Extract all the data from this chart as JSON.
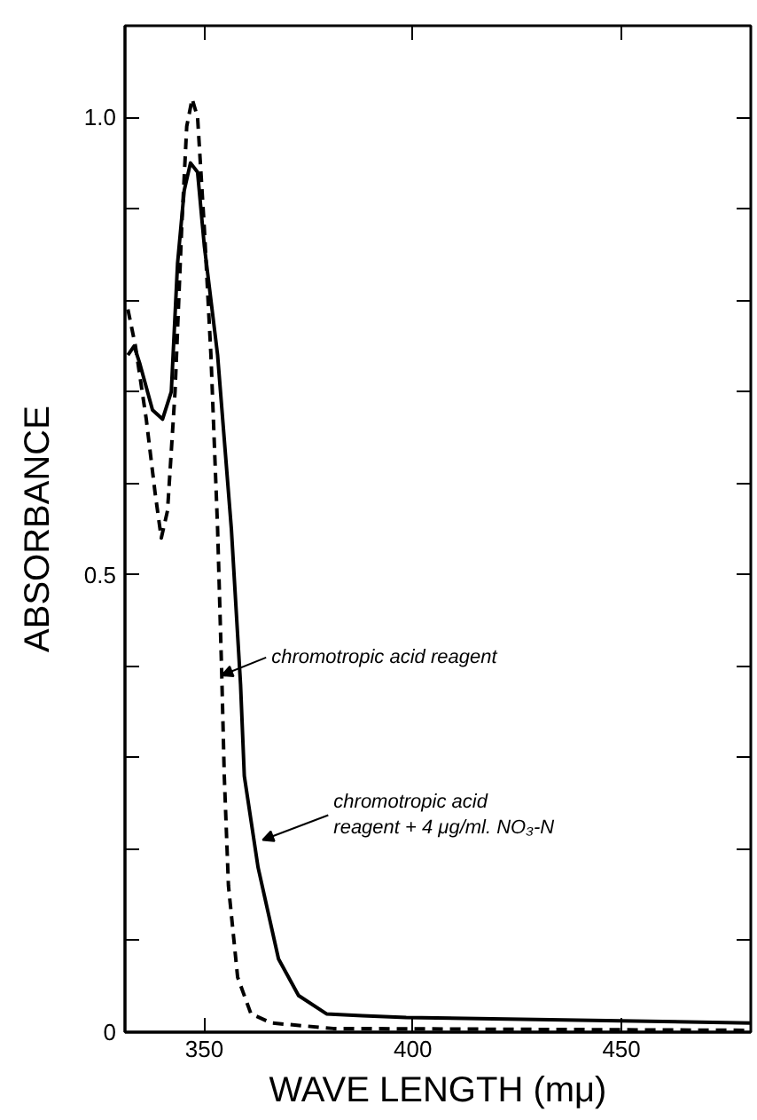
{
  "chart_data": {
    "type": "line",
    "xlabel": "WAVE LENGTH (mμ)",
    "ylabel": "ABSORBANCE",
    "xlim": [
      331,
      481
    ],
    "ylim": [
      0,
      1.1
    ],
    "xticks": [
      350,
      400,
      450
    ],
    "yticks": [
      {
        "value": 0,
        "label": "0"
      },
      {
        "value": 0.1,
        "label": null
      },
      {
        "value": 0.2,
        "label": null
      },
      {
        "value": 0.3,
        "label": null
      },
      {
        "value": 0.4,
        "label": null
      },
      {
        "value": 0.5,
        "label": "0.5"
      },
      {
        "value": 0.6,
        "label": null
      },
      {
        "value": 0.7,
        "label": null
      },
      {
        "value": 0.8,
        "label": null
      },
      {
        "value": 0.9,
        "label": null
      },
      {
        "value": 1.0,
        "label": "1.0"
      }
    ],
    "marker": "none",
    "series": [
      {
        "color": "#000000",
        "line_style": "dashed",
        "x": [
          331.7,
          333.5,
          336.1,
          338.2,
          339.7,
          341.2,
          343.0,
          344.6,
          345.8,
          347.1,
          348.4,
          350.0,
          351.6,
          353.2,
          354.2,
          354.8,
          355.8,
          358.0,
          361.2,
          366.1,
          380.9,
          481.0
        ],
        "values": [
          0.79,
          0.75,
          0.67,
          0.59,
          0.54,
          0.57,
          0.7,
          0.88,
          0.99,
          1.02,
          1.0,
          0.88,
          0.74,
          0.55,
          0.39,
          0.28,
          0.16,
          0.06,
          0.02,
          0.01,
          0.004,
          0.002
        ]
      },
      {
        "color": "#000000",
        "line_style": "solid",
        "x": [
          331.7,
          333.2,
          334.6,
          337.6,
          340.0,
          342.1,
          343.6,
          345.2,
          346.7,
          348.4,
          350.0,
          351.6,
          353.2,
          356.5,
          358.7,
          359.6,
          362.9,
          367.8,
          372.6,
          379.3,
          387.9,
          398.4,
          481.0
        ],
        "values": [
          0.74,
          0.75,
          0.73,
          0.68,
          0.67,
          0.7,
          0.84,
          0.92,
          0.95,
          0.94,
          0.86,
          0.8,
          0.74,
          0.55,
          0.38,
          0.28,
          0.18,
          0.08,
          0.04,
          0.02,
          0.018,
          0.016,
          0.01
        ]
      }
    ],
    "annotations": [
      {
        "text": "chromotropic acid reagent",
        "x": 354.2,
        "y": 0.39
      },
      {
        "text": "chromotropic acid\nreagent + 4 μg/ml. NO₃-N",
        "x": 364.0,
        "y": 0.21
      }
    ]
  }
}
